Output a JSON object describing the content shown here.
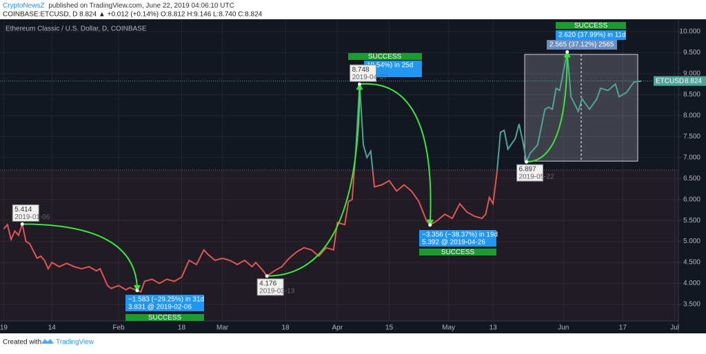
{
  "header": {
    "publisher": "CryptoNewsZ",
    "published": "published on TradingView.com, June 22, 2019 04:06:10 UTC",
    "quote": "COINBASE:ETCUSD, D 8.824 ▲ +0.012 (+0.14%) O:8.812 H:9.146 L:8.740 C:8.824"
  },
  "footer": {
    "created": "Created with",
    "brand": "TradingView"
  },
  "chart_data": {
    "type": "line",
    "title": "Ethereum Classic / U.S. Dollar, D, COINBASE",
    "x": [
      "2019-01-01",
      "2019-01-02",
      "2019-01-03",
      "2019-01-04",
      "2019-01-05",
      "2019-01-06",
      "2019-01-07",
      "2019-01-08",
      "2019-01-10",
      "2019-01-11",
      "2019-01-12",
      "2019-01-13",
      "2019-01-14",
      "2019-01-16",
      "2019-01-18",
      "2019-01-20",
      "2019-01-22",
      "2019-01-24",
      "2019-01-26",
      "2019-01-27",
      "2019-01-29",
      "2019-01-30",
      "2019-02-01",
      "2019-02-03",
      "2019-02-04",
      "2019-02-06",
      "2019-02-07",
      "2019-02-08",
      "2019-02-10",
      "2019-02-12",
      "2019-02-14",
      "2019-02-16",
      "2019-02-18",
      "2019-02-20",
      "2019-02-22",
      "2019-02-24",
      "2019-02-25",
      "2019-02-27",
      "2019-03-01",
      "2019-03-03",
      "2019-03-05",
      "2019-03-07",
      "2019-03-09",
      "2019-03-10",
      "2019-03-12",
      "2019-03-13",
      "2019-03-15",
      "2019-03-17",
      "2019-03-19",
      "2019-03-21",
      "2019-03-23",
      "2019-03-25",
      "2019-03-27",
      "2019-03-29",
      "2019-03-31",
      "2019-04-01",
      "2019-04-03",
      "2019-04-04",
      "2019-04-05",
      "2019-04-06",
      "2019-04-07",
      "2019-04-08",
      "2019-04-09",
      "2019-04-10",
      "2019-04-11",
      "2019-04-13",
      "2019-04-15",
      "2019-04-17",
      "2019-04-19",
      "2019-04-21",
      "2019-04-23",
      "2019-04-25",
      "2019-04-26",
      "2019-04-28",
      "2019-04-30",
      "2019-05-02",
      "2019-05-04",
      "2019-05-06",
      "2019-05-08",
      "2019-05-10",
      "2019-05-11",
      "2019-05-12",
      "2019-05-13",
      "2019-05-14",
      "2019-05-15",
      "2019-05-16",
      "2019-05-17",
      "2019-05-19",
      "2019-05-20",
      "2019-05-21",
      "2019-05-22",
      "2019-05-23",
      "2019-05-25",
      "2019-05-27",
      "2019-05-28",
      "2019-05-29",
      "2019-05-30",
      "2019-05-31",
      "2019-06-02",
      "2019-06-03",
      "2019-06-05",
      "2019-06-06",
      "2019-06-08",
      "2019-06-10",
      "2019-06-11",
      "2019-06-13",
      "2019-06-15",
      "2019-06-16",
      "2019-06-18",
      "2019-06-20",
      "2019-06-22"
    ],
    "series": [
      {
        "name": "ETCUSD",
        "color_above": "#4fa59a",
        "color_below": "#e0574f",
        "values": [
          5.3,
          5.4,
          5.05,
          5.25,
          5.15,
          5.414,
          5.0,
          4.95,
          4.6,
          4.65,
          4.55,
          4.35,
          4.5,
          4.4,
          4.48,
          4.4,
          4.35,
          4.4,
          4.3,
          4.35,
          3.95,
          3.88,
          3.95,
          3.85,
          3.9,
          3.831,
          3.8,
          4.05,
          4.1,
          4.0,
          4.1,
          4.05,
          4.15,
          4.55,
          4.45,
          4.8,
          4.7,
          4.55,
          4.6,
          4.55,
          4.45,
          4.55,
          4.4,
          4.5,
          4.3,
          4.176,
          4.3,
          4.4,
          4.6,
          4.75,
          4.85,
          4.8,
          4.65,
          4.85,
          4.8,
          5.45,
          5.4,
          5.95,
          6.0,
          7.2,
          8.748,
          7.3,
          7.0,
          7.15,
          6.3,
          6.35,
          6.45,
          6.2,
          6.35,
          6.2,
          5.95,
          5.5,
          5.392,
          5.5,
          5.65,
          5.55,
          5.9,
          5.7,
          5.6,
          5.55,
          5.65,
          6.05,
          5.9,
          6.6,
          7.6,
          7.65,
          7.2,
          7.45,
          7.8,
          7.4,
          6.897,
          7.1,
          7.3,
          8.15,
          8.2,
          8.15,
          8.65,
          8.6,
          9.517,
          8.45,
          8.1,
          8.4,
          8.15,
          8.4,
          8.65,
          8.6,
          8.75,
          8.45,
          8.55,
          8.8,
          8.824
        ]
      }
    ],
    "baseline": 6.7,
    "xlim": [
      "2018-12-31",
      "2019-07-02"
    ],
    "xticks": [
      {
        "value": "2019-01-01",
        "label": "19"
      },
      {
        "value": "2019-01-14",
        "label": "14"
      },
      {
        "value": "2019-02-01",
        "label": "Feb"
      },
      {
        "value": "2019-02-18",
        "label": "18"
      },
      {
        "value": "2019-03-01",
        "label": "Mar"
      },
      {
        "value": "2019-03-18",
        "label": "18"
      },
      {
        "value": "2019-04-01",
        "label": "Apr"
      },
      {
        "value": "2019-04-15",
        "label": "15"
      },
      {
        "value": "2019-05-01",
        "label": "May"
      },
      {
        "value": "2019-05-13",
        "label": "13"
      },
      {
        "value": "2019-06-01",
        "label": "Jun"
      },
      {
        "value": "2019-06-17",
        "label": "17"
      },
      {
        "value": "2019-07-01",
        "label": "Jul"
      }
    ],
    "ylim": [
      3.106,
      10.295
    ],
    "yticks": [
      {
        "value": 3.5,
        "label": "3.500"
      },
      {
        "value": 4,
        "label": "4.000"
      },
      {
        "value": 4.5,
        "label": "4.500"
      },
      {
        "value": 5,
        "label": "5.000"
      },
      {
        "value": 5.5,
        "label": "5.500"
      },
      {
        "value": 6,
        "label": "6.000"
      },
      {
        "value": 6.5,
        "label": "6.500"
      },
      {
        "value": 7,
        "label": "7.000"
      },
      {
        "value": 7.5,
        "label": "7.500"
      },
      {
        "value": 8,
        "label": "8.000"
      },
      {
        "value": 8.5,
        "label": "8.500"
      },
      {
        "value": 9,
        "label": "9.000"
      },
      {
        "value": 9.5,
        "label": "9.500"
      },
      {
        "value": 10,
        "label": "10.000"
      }
    ],
    "grid": true,
    "annotations": [
      {
        "lines": [
          "−1.583 (−29.25%) in 31d",
          "3.831 @ 2019-02-06"
        ],
        "status": "SUCCESS"
      },
      {
        "lines": [
          "10.54%) in 25d"
        ],
        "status": "SUCCESS"
      },
      {
        "lines": [
          "−3.356 (−38.37%) in 19d",
          "5.392 @ 2019-04-26"
        ],
        "status": "SUCCESS"
      },
      {
        "lines": [
          "2.620 (37.99%) in 11d",
          "2.565 (37.12%) 2565"
        ],
        "status": "SUCCESS"
      }
    ]
  }
}
